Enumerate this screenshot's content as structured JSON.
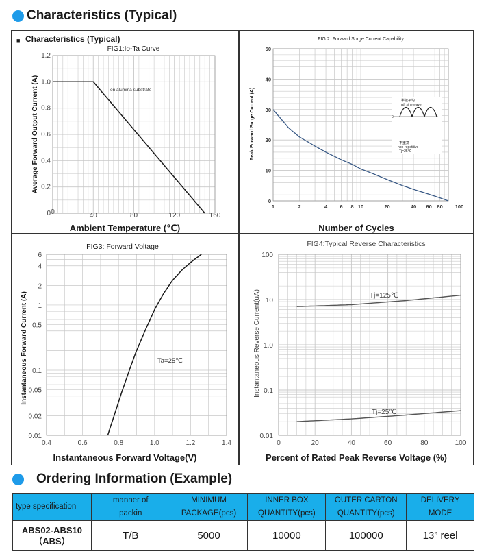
{
  "sections": {
    "characteristics": "Characteristics (Typical)",
    "ordering": "Ordering Information (Example)"
  },
  "fig1": {
    "inner_heading": "Characteristics (Typical)",
    "title": "FIG1:Io-Ta Curve",
    "ylabel": "Average Forward Output Current (A)",
    "xcaption": "Ambient Temperature (℃)",
    "xticks": [
      "0",
      "40",
      "80",
      "120",
      "160"
    ],
    "yticks": [
      "0",
      "0.2",
      "0.4",
      "0.6",
      "0.8",
      "1.0",
      "1.2"
    ],
    "annotation": "on alumina substrate"
  },
  "fig2": {
    "title": "FIG.2: Forward Surge Current Capability",
    "ylabel": "Peak Forward Surge Current (A)",
    "xcaption": "Number of Cycles",
    "xticks": [
      "1",
      "2",
      "4",
      "6",
      "8",
      "10",
      "20",
      "40",
      "60",
      "80",
      "100"
    ],
    "yticks": [
      "0",
      "10",
      "20",
      "30",
      "40",
      "50"
    ],
    "inset": {
      "l1": "半波平均",
      "l2": "half sine wave",
      "l3": "不重复",
      "l4": "non-repetitive",
      "l5": "Tj=25℃",
      "zero": "0"
    }
  },
  "fig3": {
    "title": "FIG3: Forward Voltage",
    "ylabel": "Instantaneous Forward Current (A)",
    "xcaption": "Instantaneous Forward Voltage(V)",
    "xticks": [
      "0.4",
      "0.6",
      "0.8",
      "1.0",
      "1.2",
      "1.4"
    ],
    "yticks": [
      "6",
      "4",
      "2",
      "1",
      "0.5",
      "0.1",
      "0.05",
      "0.02",
      "0.01"
    ],
    "annotation": "Ta=25℃"
  },
  "fig4": {
    "title": "FIG4:Typical Reverse Characteristics",
    "ylabel": "Instantaneous Reverse Current(uA)",
    "xcaption": "Percent of Rated Peak Reverse Voltage (%)",
    "xticks": [
      "0",
      "20",
      "40",
      "60",
      "80",
      "100"
    ],
    "yticks": [
      "100",
      "10",
      "1.0",
      "0.1",
      "0.01"
    ],
    "label_hi": "Tj=125℃",
    "label_lo": "Tj=25℃"
  },
  "chart_data": [
    {
      "type": "line",
      "title": "FIG1:Io-Ta Curve",
      "xlabel": "Ambient Temperature (℃)",
      "ylabel": "Average Forward Output Current (A)",
      "xlim": [
        0,
        160
      ],
      "ylim": [
        0,
        1.2
      ],
      "x": [
        0,
        40,
        150
      ],
      "series": [
        {
          "values": [
            1.0,
            1.0,
            0
          ]
        }
      ],
      "annotations": [
        "on alumina substrate"
      ],
      "grid": true
    },
    {
      "type": "line",
      "title": "FIG.2: Forward Surge Current Capability",
      "xlabel": "Number of Cycles",
      "ylabel": "Peak Forward Surge Current (A)",
      "xscale": "log",
      "xlim": [
        1,
        100
      ],
      "ylim": [
        0,
        50
      ],
      "x": [
        1,
        1.5,
        2,
        3,
        4,
        6,
        8,
        10,
        15,
        20,
        30,
        40,
        60,
        80,
        100
      ],
      "series": [
        {
          "values": [
            30,
            24,
            21,
            18,
            16,
            13.5,
            12,
            10.5,
            8.5,
            7,
            5,
            3.8,
            2.2,
            1,
            0
          ]
        }
      ],
      "grid": true
    },
    {
      "type": "line",
      "title": "FIG3: Forward Voltage",
      "xlabel": "Instantaneous Forward Voltage(V)",
      "ylabel": "Instantaneous Forward Current (A)",
      "yscale": "log",
      "xlim": [
        0.4,
        1.4
      ],
      "ylim": [
        0.01,
        6
      ],
      "x": [
        0.74,
        0.78,
        0.82,
        0.86,
        0.9,
        0.95,
        1.0,
        1.05,
        1.1,
        1.15,
        1.2,
        1.26
      ],
      "series": [
        {
          "values": [
            0.01,
            0.022,
            0.048,
            0.1,
            0.2,
            0.42,
            0.85,
            1.5,
            2.4,
            3.4,
            4.5,
            6
          ]
        }
      ],
      "annotations": [
        "Ta=25℃"
      ],
      "grid": true
    },
    {
      "type": "line",
      "title": "FIG4:Typical Reverse Characteristics",
      "xlabel": "Percent of Rated Peak Reverse Voltage (%)",
      "ylabel": "Instantaneous Reverse Current(uA)",
      "yscale": "log",
      "xlim": [
        0,
        100
      ],
      "ylim": [
        0.01,
        100
      ],
      "x": [
        10,
        40,
        70,
        100
      ],
      "series": [
        {
          "name": "Tj=125℃",
          "values": [
            7,
            7.7,
            9.5,
            12.5
          ]
        },
        {
          "name": "Tj=25℃",
          "values": [
            0.02,
            0.023,
            0.028,
            0.035
          ]
        }
      ],
      "grid": true
    }
  ],
  "order_table": {
    "headers": [
      [
        "type specification",
        ""
      ],
      [
        "manner of",
        "packin"
      ],
      [
        "MINIMUM",
        "PACKAGE(pcs)"
      ],
      [
        "INNER BOX",
        "QUANTITY(pcs)"
      ],
      [
        "OUTER CARTON",
        "QUANTITY(pcs)"
      ],
      [
        "DELIVERY",
        "MODE"
      ]
    ],
    "row": {
      "type_l1": "ABS02-ABS10",
      "type_l2": "（ABS）",
      "manner": "T/B",
      "minimum": "5000",
      "inner": "10000",
      "outer": "100000",
      "mode": "13” reel"
    }
  },
  "colors": {
    "accent": "#1E9BE9",
    "header_bg": "#19AEEA",
    "curve": "#1a1a1a",
    "curve_fig2": "#3a5a86",
    "grid": "#c8c8c8"
  }
}
